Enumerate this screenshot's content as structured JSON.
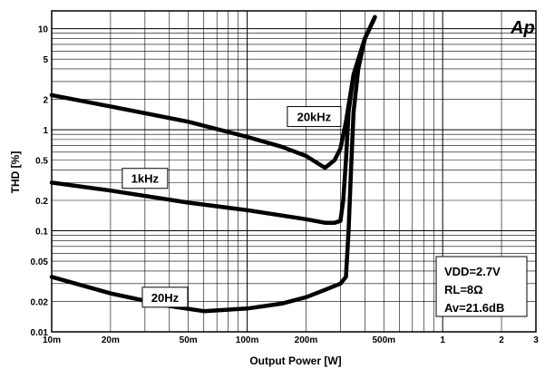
{
  "chart_data": {
    "type": "line",
    "title": "",
    "xlabel": "Output Power [W]",
    "ylabel": "THD [%]",
    "x_scale": "log",
    "y_scale": "log",
    "xlim": [
      0.01,
      3
    ],
    "ylim": [
      0.01,
      15
    ],
    "grid": true,
    "x_ticks": [
      {
        "v": 0.01,
        "label": "10m"
      },
      {
        "v": 0.02,
        "label": "20m"
      },
      {
        "v": 0.05,
        "label": "50m"
      },
      {
        "v": 0.1,
        "label": "100m"
      },
      {
        "v": 0.2,
        "label": "200m"
      },
      {
        "v": 0.5,
        "label": "500m"
      },
      {
        "v": 1,
        "label": "1"
      },
      {
        "v": 2,
        "label": "2"
      },
      {
        "v": 3,
        "label": "3"
      }
    ],
    "y_ticks": [
      {
        "v": 0.01,
        "label": "0.01"
      },
      {
        "v": 0.02,
        "label": "0.02"
      },
      {
        "v": 0.05,
        "label": "0.05"
      },
      {
        "v": 0.1,
        "label": "0.1"
      },
      {
        "v": 0.2,
        "label": "0.2"
      },
      {
        "v": 0.5,
        "label": "0.5"
      },
      {
        "v": 1,
        "label": "1"
      },
      {
        "v": 2,
        "label": "2"
      },
      {
        "v": 5,
        "label": "5"
      },
      {
        "v": 10,
        "label": "10"
      }
    ],
    "series": [
      {
        "name": "20kHz",
        "x": [
          0.01,
          0.02,
          0.05,
          0.1,
          0.15,
          0.2,
          0.25,
          0.28,
          0.3,
          0.32,
          0.35,
          0.4,
          0.45
        ],
        "y": [
          2.2,
          1.7,
          1.2,
          0.85,
          0.68,
          0.55,
          0.42,
          0.5,
          0.65,
          1.2,
          3.5,
          8.0,
          13.0
        ]
      },
      {
        "name": "1kHz",
        "x": [
          0.01,
          0.02,
          0.05,
          0.1,
          0.2,
          0.25,
          0.28,
          0.3,
          0.31,
          0.32,
          0.33,
          0.35,
          0.4,
          0.45
        ],
        "y": [
          0.3,
          0.25,
          0.19,
          0.16,
          0.13,
          0.12,
          0.12,
          0.125,
          0.2,
          0.5,
          1.5,
          3.5,
          8.0,
          13.0
        ]
      },
      {
        "name": "20Hz",
        "x": [
          0.01,
          0.02,
          0.04,
          0.06,
          0.1,
          0.15,
          0.2,
          0.25,
          0.3,
          0.32,
          0.33,
          0.34,
          0.35,
          0.37,
          0.4,
          0.45
        ],
        "y": [
          0.035,
          0.024,
          0.018,
          0.016,
          0.017,
          0.019,
          0.022,
          0.026,
          0.03,
          0.035,
          0.1,
          0.4,
          1.5,
          4.0,
          8.0,
          13.0
        ]
      }
    ],
    "annotations": [
      {
        "text": "20kHz",
        "x": 0.22,
        "y": 1.35
      },
      {
        "text": "1kHz",
        "x": 0.03,
        "y": 0.33
      },
      {
        "text": "20Hz",
        "x": 0.038,
        "y": 0.022
      }
    ],
    "conditions": [
      "VDD=2.7V",
      "RL=8Ω",
      "Av=21.6dB"
    ],
    "logo": "Ap"
  }
}
